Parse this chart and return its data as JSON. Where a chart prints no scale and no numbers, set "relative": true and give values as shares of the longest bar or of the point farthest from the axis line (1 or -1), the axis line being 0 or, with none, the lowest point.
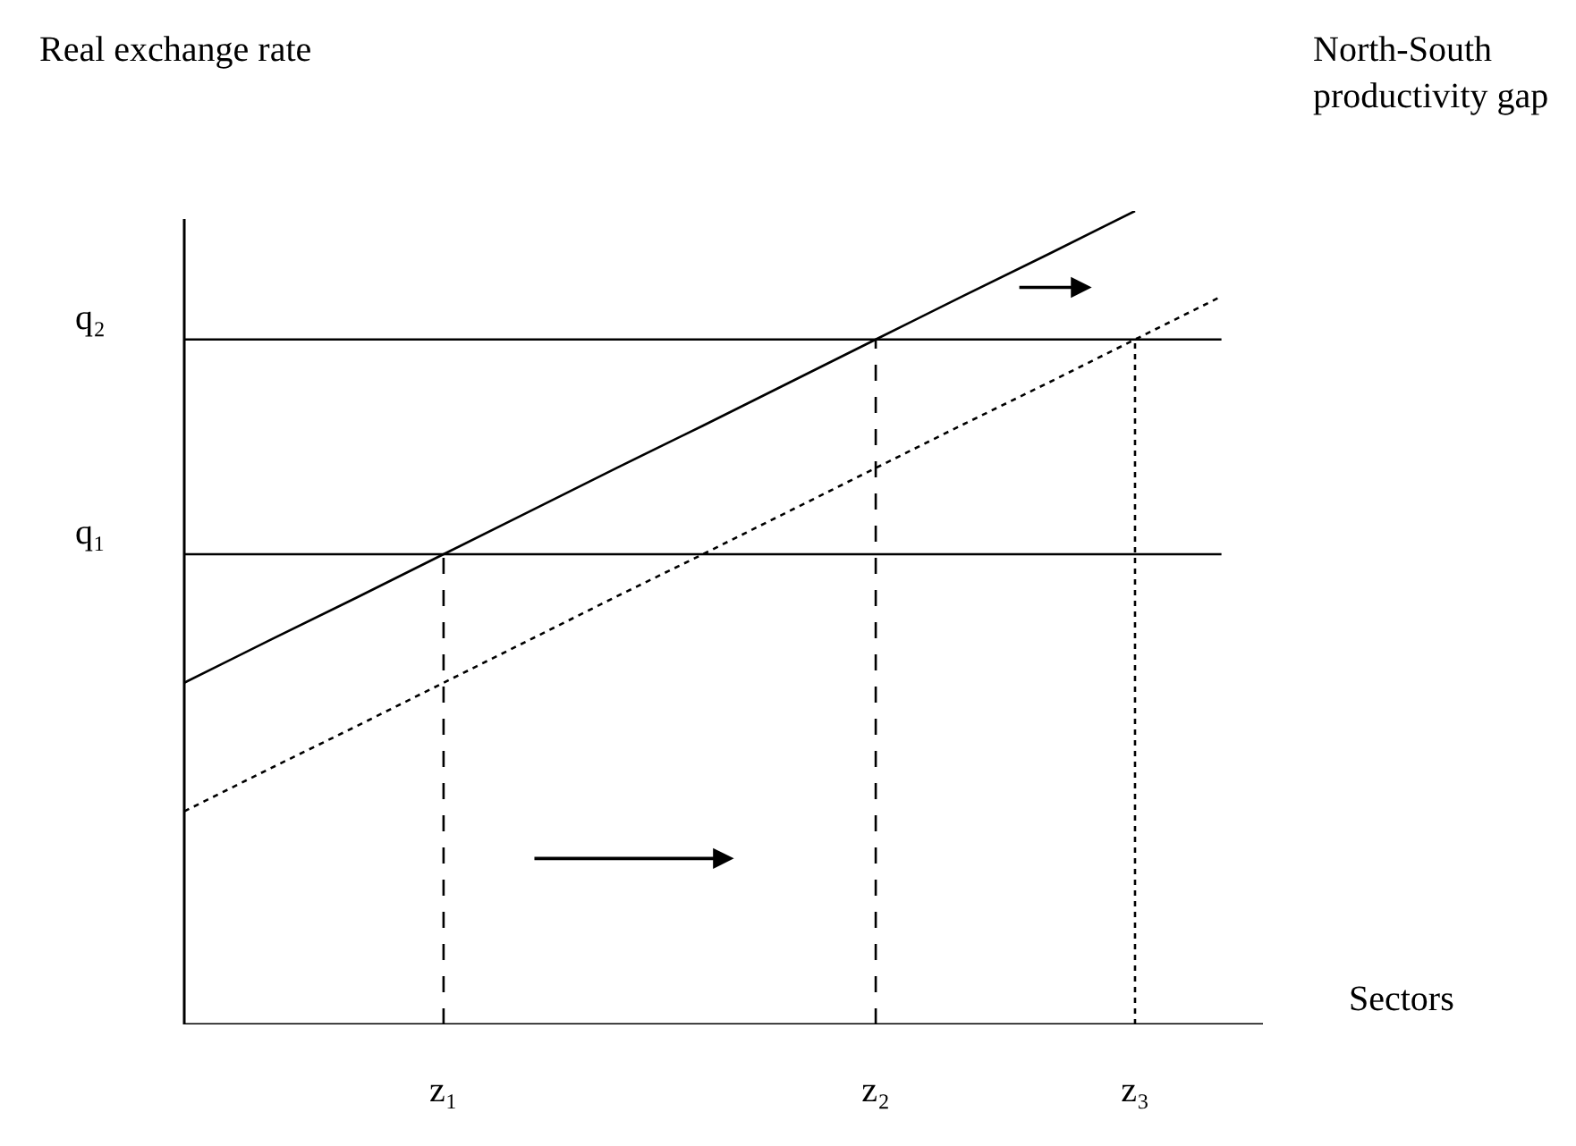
{
  "chart_data": {
    "type": "line",
    "relative": true,
    "ylabel": "Real exchange rate",
    "xlabel": "Sectors",
    "annotations": [
      "North-South\nproductivity gap"
    ],
    "categories": [
      null,
      null,
      null,
      "z₁",
      null,
      null,
      null,
      null,
      "z₂",
      null,
      null,
      "z₃",
      null
    ],
    "tick_labels": "x",
    "grid": false,
    "marker": "none",
    "series": [
      {
        "color": "#000000",
        "line_style": "solid",
        "values": [
          0.42,
          0.473,
          0.525,
          0.578,
          0.631,
          0.684,
          0.736,
          0.789,
          0.842,
          0.895,
          0.947,
          1.0,
          null
        ]
      },
      {
        "color": "#000000",
        "line_style": "dotted",
        "values": [
          0.262,
          0.315,
          0.367,
          0.42,
          0.473,
          0.526,
          0.578,
          0.631,
          0.684,
          0.737,
          0.789,
          0.842,
          0.895
        ]
      },
      {
        "name": "q₂",
        "color": "#000000",
        "line_style": "solid",
        "values": [
          0.842,
          0.842,
          0.842,
          0.842,
          0.842,
          0.842,
          0.842,
          0.842,
          0.842,
          0.842,
          0.842,
          0.842,
          0.842
        ]
      },
      {
        "name": "q₁",
        "color": "#000000",
        "line_style": "solid",
        "values": [
          0.578,
          0.578,
          0.578,
          0.578,
          0.578,
          0.578,
          0.578,
          0.578,
          0.578,
          0.578,
          0.578,
          0.578,
          0.578
        ]
      },
      {
        "color": "#000000",
        "line_style": "dashed",
        "x": [
          "z₁",
          "z₁"
        ],
        "values": [
          0,
          0.578
        ]
      },
      {
        "color": "#000000",
        "line_style": "dashed",
        "x": [
          "z₂",
          "z₂"
        ],
        "values": [
          0,
          0.842
        ]
      },
      {
        "color": "#000000",
        "line_style": "dotted",
        "x": [
          "z₃",
          "z₃"
        ],
        "values": [
          0,
          0.842
        ]
      }
    ]
  }
}
